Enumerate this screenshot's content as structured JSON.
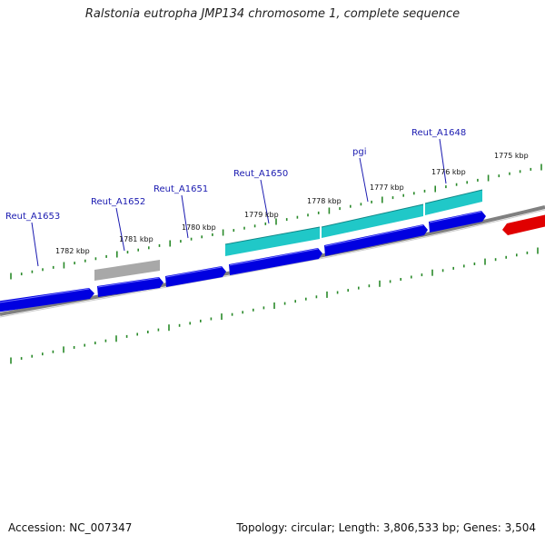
{
  "title": "Ralstonia eutropha JMP134 chromosome 1, complete sequence",
  "footer": {
    "accession": "Accession: NC_007347",
    "summary": "Topology: circular; Length: 3,806,533 bp; Genes: 3,504"
  },
  "colors": {
    "background": "#ffffff",
    "backbone": "#808080",
    "forward_strand_gene": "#0000e0",
    "gene_highlight": "#20c8c8",
    "gene_grey": "#a8a8a8",
    "reverse_strand_gene": "#e00000",
    "tick": "#2a8a2a",
    "label": "#1a1ab0"
  },
  "kbp_labels": [
    "1782 kbp",
    "1781 kbp",
    "1780 kbp",
    "1779 kbp",
    "1778 kbp",
    "1777 kbp",
    "1776 kbp",
    "1775 kbp"
  ],
  "gene_labels": [
    "Reut_A1653",
    "Reut_A1652",
    "Reut_A1651",
    "Reut_A1650",
    "pgi",
    "Reut_A1648"
  ]
}
